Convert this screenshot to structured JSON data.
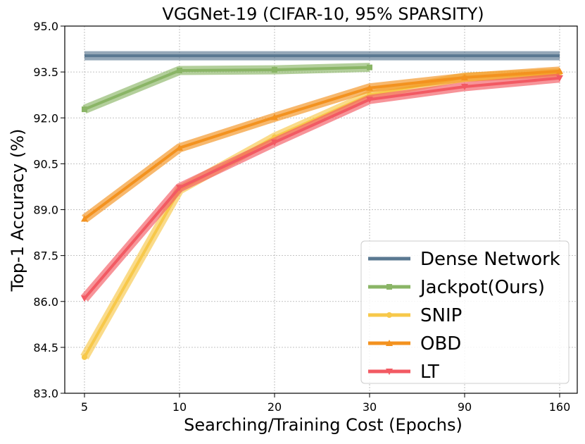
{
  "chart_data": {
    "type": "line",
    "title": "VGGNet-19 (CIFAR-10, 95% SPARSITY)",
    "xlabel": "Searching/Training Cost (Epochs)",
    "ylabel": "Top-1 Accuracy (%)",
    "categories": [
      "5",
      "10",
      "20",
      "30",
      "90",
      "160"
    ],
    "ylim": [
      83.0,
      95.0
    ],
    "yticks": [
      "83.0",
      "84.5",
      "86.0",
      "87.5",
      "89.0",
      "90.5",
      "92.0",
      "93.5",
      "95.0"
    ],
    "grid": true,
    "legend_position": "bottom-right",
    "series": [
      {
        "name": "Dense Network",
        "color": "#5a7891",
        "marker": "none",
        "values": [
          94.03,
          94.03,
          94.03,
          94.03,
          94.03,
          94.03
        ],
        "band": 0.1
      },
      {
        "name": "Jackpot(Ours)",
        "color": "#8ab566",
        "marker": "square",
        "values": [
          92.28,
          93.55,
          93.57,
          93.65,
          null,
          null
        ],
        "band": 0.12
      },
      {
        "name": "SNIP",
        "color": "#f7c84a",
        "marker": "circle",
        "values": [
          84.18,
          89.65,
          91.37,
          92.75,
          93.33,
          93.47
        ],
        "band": 0.1
      },
      {
        "name": "OBD",
        "color": "#f3921f",
        "marker": "triangle-up",
        "values": [
          88.7,
          91.02,
          92.02,
          92.98,
          93.32,
          93.53
        ],
        "band": 0.1
      },
      {
        "name": "LT",
        "color": "#f25a63",
        "marker": "triangle-down",
        "values": [
          86.1,
          89.72,
          91.2,
          92.6,
          93.02,
          93.3
        ],
        "band": 0.12
      }
    ]
  }
}
